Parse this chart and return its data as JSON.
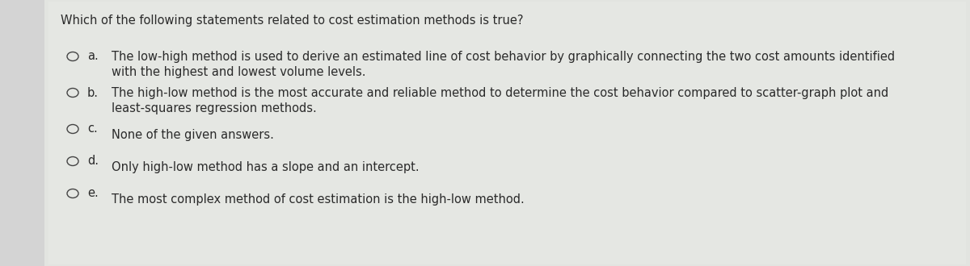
{
  "bg_color": "#d4d4d4",
  "panel_color": "#e2e4e0",
  "title": "Which of the following statements related to cost estimation methods is true?",
  "title_fontsize": 10.5,
  "text_color": "#2a2a2a",
  "circle_color": "#444444",
  "options": [
    {
      "label": "a.",
      "lines": [
        "The low-high method is used to derive an estimated line of cost behavior by graphically connecting the two cost amounts identified",
        "with the highest and lowest volume levels."
      ]
    },
    {
      "label": "b.",
      "lines": [
        "The high-low method is the most accurate and reliable method to determine the cost behavior compared to scatter-graph plot and",
        "least-squares regression methods."
      ]
    },
    {
      "label": "c.",
      "lines": [
        "None of the given answers."
      ]
    },
    {
      "label": "d.",
      "lines": [
        "Only high-low method has a slope and an intercept."
      ]
    },
    {
      "label": "e.",
      "lines": [
        "The most complex method of cost estimation is the high-low method."
      ]
    }
  ],
  "fontsize": 10.5,
  "label_fontsize": 10.5
}
